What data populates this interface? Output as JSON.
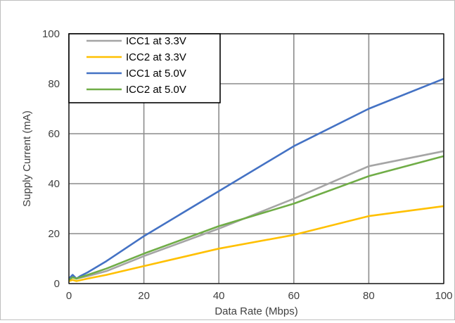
{
  "chart_data": {
    "type": "line",
    "title": "",
    "xlabel": "Data Rate (Mbps)",
    "ylabel": "Supply Current (mA)",
    "xlim": [
      0,
      100
    ],
    "ylim": [
      0,
      100
    ],
    "x_ticks": [
      "0",
      "20",
      "40",
      "60",
      "80",
      "100"
    ],
    "y_ticks": [
      "0",
      "20",
      "40",
      "60",
      "80",
      "100"
    ],
    "grid": true,
    "legend_position": "top-left",
    "series": [
      {
        "name": "ICC1 at 3.3V",
        "color": "#a5a5a5",
        "points": [
          [
            0,
            2
          ],
          [
            1,
            3
          ],
          [
            2,
            2
          ],
          [
            5,
            3
          ],
          [
            10,
            5
          ],
          [
            20,
            11
          ],
          [
            40,
            22
          ],
          [
            60,
            34
          ],
          [
            80,
            47
          ],
          [
            100,
            53
          ]
        ]
      },
      {
        "name": "ICC2 at 3.3V",
        "color": "#ffc000",
        "points": [
          [
            0,
            1
          ],
          [
            1,
            1.5
          ],
          [
            2,
            1
          ],
          [
            5,
            2
          ],
          [
            10,
            3.5
          ],
          [
            20,
            7
          ],
          [
            40,
            14
          ],
          [
            60,
            19.5
          ],
          [
            80,
            27
          ],
          [
            100,
            31
          ]
        ]
      },
      {
        "name": "ICC1 at 5.0V",
        "color": "#4472c4",
        "points": [
          [
            0,
            2
          ],
          [
            1,
            3.5
          ],
          [
            2,
            2
          ],
          [
            3,
            3
          ],
          [
            5,
            4.5
          ],
          [
            10,
            9
          ],
          [
            20,
            19
          ],
          [
            40,
            37
          ],
          [
            60,
            55
          ],
          [
            80,
            70
          ],
          [
            100,
            82
          ]
        ]
      },
      {
        "name": "ICC2 at 5.0V",
        "color": "#70ad47",
        "points": [
          [
            0,
            1.5
          ],
          [
            1,
            2.5
          ],
          [
            2,
            2
          ],
          [
            5,
            3.5
          ],
          [
            10,
            6
          ],
          [
            20,
            12
          ],
          [
            40,
            23
          ],
          [
            60,
            32
          ],
          [
            80,
            43
          ],
          [
            100,
            51
          ]
        ]
      }
    ]
  }
}
